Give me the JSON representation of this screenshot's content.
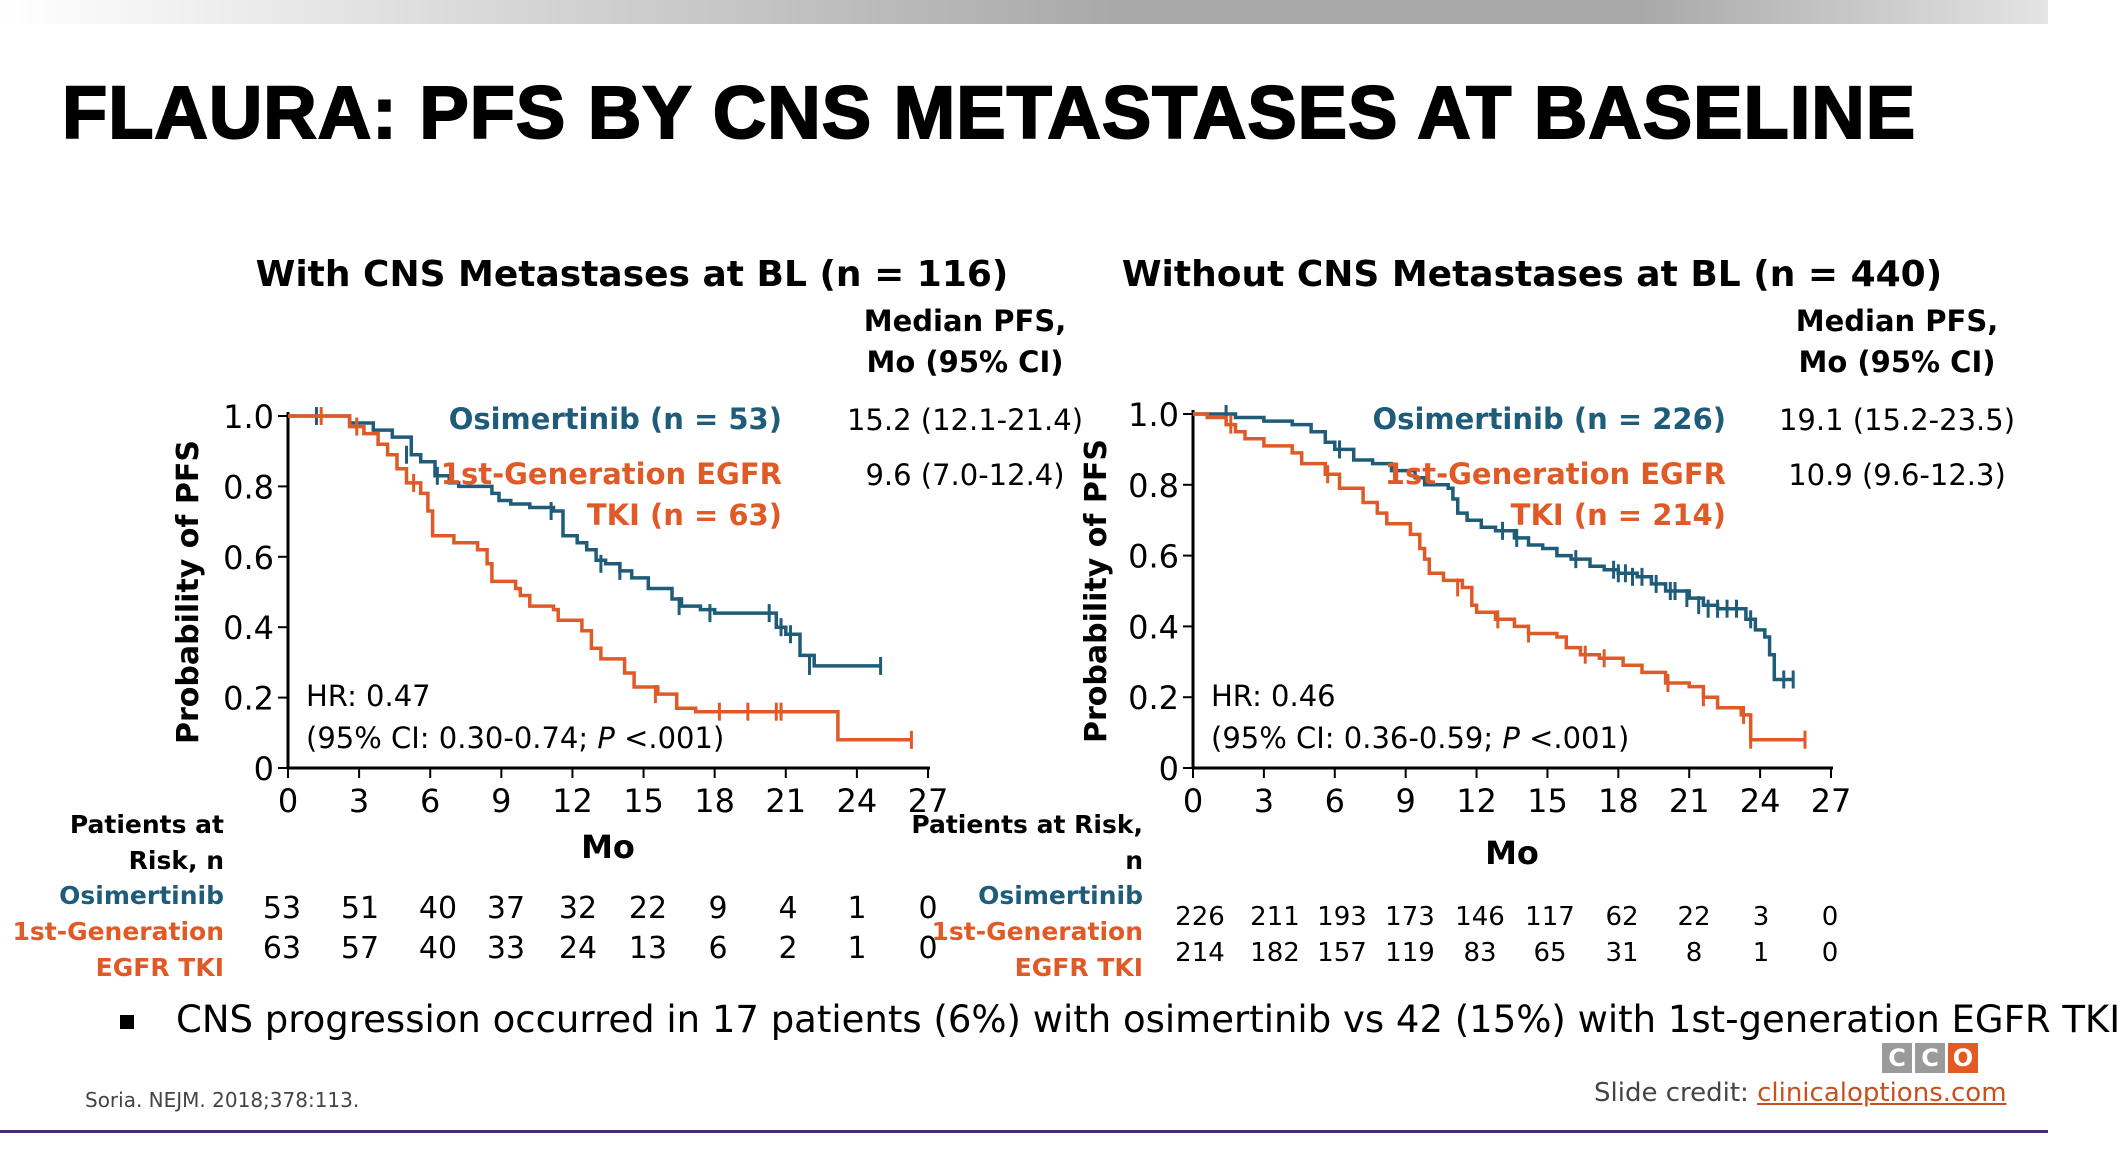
{
  "slide": {
    "title": "FLAURA: PFS BY CNS METASTASES AT BASELINE",
    "bullet": "CNS progression occurred in 17 patients (6%) with osimertinib vs 42 (15%) with 1st-generation EGFR TKI",
    "source": "Soria. NEJM. 2018;378:113.",
    "credit_label": "Slide credit:",
    "credit_link": "clinicaloptions.com",
    "logo_letters": [
      "C",
      "C",
      "O"
    ]
  },
  "colors": {
    "osimertinib": "#1f5c7a",
    "egfr_tki": "#e05a27",
    "logo_gray": "#9a9a9a",
    "bottom_line": "#4b2a6e"
  },
  "chart_data": [
    {
      "type": "line",
      "subtype": "kaplan-meier",
      "title": "With CNS Metastases at BL (n = 116)",
      "xlabel": "Mo",
      "ylabel": "Probability of PFS",
      "xlim": [
        0,
        27
      ],
      "ylim": [
        0,
        1.0
      ],
      "x_ticks": [
        0,
        3,
        6,
        9,
        12,
        15,
        18,
        21,
        24,
        27
      ],
      "y_ticks": [
        0,
        0.2,
        0.4,
        0.6,
        0.8,
        1.0
      ],
      "y_tick_labels": [
        "0",
        "0.2",
        "0.4",
        "0.6",
        "0.8",
        "1.0"
      ],
      "median_header": [
        "Median PFS,",
        "Mo (95% CI)"
      ],
      "series": [
        {
          "name": "Osimertinib (n = 53)",
          "legend_lines": [
            "Osimertinib (n = 53)"
          ],
          "median": "15.2 (12.1-21.4)",
          "color_key": "osimertinib",
          "points": [
            [
              0,
              1.0
            ],
            [
              2.2,
              1.0
            ],
            [
              2.6,
              0.98
            ],
            [
              3.6,
              0.96
            ],
            [
              4.4,
              0.94
            ],
            [
              5.2,
              0.89
            ],
            [
              5.6,
              0.87
            ],
            [
              6.2,
              0.83
            ],
            [
              6.8,
              0.81
            ],
            [
              7.2,
              0.8
            ],
            [
              8.6,
              0.78
            ],
            [
              8.9,
              0.76
            ],
            [
              9.4,
              0.75
            ],
            [
              10.2,
              0.74
            ],
            [
              11.2,
              0.73
            ],
            [
              11.6,
              0.66
            ],
            [
              12.2,
              0.64
            ],
            [
              12.6,
              0.62
            ],
            [
              13.0,
              0.59
            ],
            [
              13.4,
              0.58
            ],
            [
              14.0,
              0.56
            ],
            [
              14.5,
              0.54
            ],
            [
              15.2,
              0.51
            ],
            [
              16.2,
              0.48
            ],
            [
              16.6,
              0.46
            ],
            [
              17.4,
              0.45
            ],
            [
              18.0,
              0.44
            ],
            [
              19.0,
              0.44
            ],
            [
              20.2,
              0.44
            ],
            [
              20.6,
              0.4
            ],
            [
              21.0,
              0.38
            ],
            [
              21.6,
              0.32
            ],
            [
              22.2,
              0.29
            ],
            [
              25.0,
              0.29
            ]
          ],
          "censors": [
            [
              1.2,
              1.0
            ],
            [
              5.0,
              0.89
            ],
            [
              6.3,
              0.83
            ],
            [
              11.1,
              0.73
            ],
            [
              13.2,
              0.58
            ],
            [
              14.0,
              0.56
            ],
            [
              16.5,
              0.46
            ],
            [
              17.8,
              0.44
            ],
            [
              20.3,
              0.44
            ],
            [
              20.8,
              0.4
            ],
            [
              21.2,
              0.38
            ],
            [
              22.0,
              0.29
            ],
            [
              25.0,
              0.29
            ]
          ]
        },
        {
          "name": "1st-Generation EGFR TKI (n = 63)",
          "legend_lines": [
            "1st-Generation EGFR",
            "TKI (n = 63)"
          ],
          "median": "9.6 (7.0-12.4)",
          "color_key": "egfr_tki",
          "points": [
            [
              0,
              1.0
            ],
            [
              1.8,
              1.0
            ],
            [
              2.6,
              0.97
            ],
            [
              3.2,
              0.95
            ],
            [
              3.8,
              0.92
            ],
            [
              4.2,
              0.89
            ],
            [
              4.6,
              0.85
            ],
            [
              5.0,
              0.81
            ],
            [
              5.6,
              0.78
            ],
            [
              5.9,
              0.73
            ],
            [
              6.1,
              0.66
            ],
            [
              7.0,
              0.64
            ],
            [
              8.0,
              0.62
            ],
            [
              8.4,
              0.58
            ],
            [
              8.6,
              0.53
            ],
            [
              9.6,
              0.51
            ],
            [
              9.8,
              0.49
            ],
            [
              10.2,
              0.46
            ],
            [
              11.2,
              0.45
            ],
            [
              11.4,
              0.42
            ],
            [
              12.4,
              0.39
            ],
            [
              12.8,
              0.34
            ],
            [
              13.2,
              0.31
            ],
            [
              14.2,
              0.27
            ],
            [
              14.6,
              0.23
            ],
            [
              15.6,
              0.21
            ],
            [
              16.4,
              0.17
            ],
            [
              17.2,
              0.16
            ],
            [
              18.4,
              0.16
            ],
            [
              19.2,
              0.16
            ],
            [
              20.4,
              0.16
            ],
            [
              22.8,
              0.16
            ],
            [
              23.2,
              0.08
            ],
            [
              26.3,
              0.08
            ]
          ],
          "censors": [
            [
              1.4,
              1.0
            ],
            [
              2.9,
              0.97
            ],
            [
              5.3,
              0.81
            ],
            [
              15.5,
              0.21
            ],
            [
              18.2,
              0.16
            ],
            [
              19.4,
              0.16
            ],
            [
              20.6,
              0.16
            ],
            [
              20.8,
              0.16
            ],
            [
              26.3,
              0.08
            ]
          ]
        }
      ],
      "annotation": {
        "hr": "HR: 0.47",
        "ci_prefix": "(95% CI: 0.30-0.74; ",
        "p_italic": "P",
        "ci_suffix": " <.001)"
      },
      "risk_table": {
        "header_lines": [
          "Patients at",
          "Risk, n"
        ],
        "rows": [
          {
            "label_lines": [
              "Osimertinib"
            ],
            "color_key": "osimertinib",
            "values": [
              "53",
              "51",
              "40",
              "37",
              "32",
              "22",
              "9",
              "4",
              "1",
              "0"
            ]
          },
          {
            "label_lines": [
              "1st-Generation",
              "EGFR TKI"
            ],
            "color_key": "egfr_tki",
            "values": [
              "63",
              "57",
              "40",
              "33",
              "24",
              "13",
              "6",
              "2",
              "1",
              "0"
            ]
          }
        ]
      }
    },
    {
      "type": "line",
      "subtype": "kaplan-meier",
      "title": "Without CNS Metastases at BL (n = 440)",
      "xlabel": "Mo",
      "ylabel": "Probability of PFS",
      "xlim": [
        0,
        27
      ],
      "ylim": [
        0,
        1.0
      ],
      "x_ticks": [
        0,
        3,
        6,
        9,
        12,
        15,
        18,
        21,
        24,
        27
      ],
      "y_ticks": [
        0,
        0.2,
        0.4,
        0.6,
        0.8,
        1.0
      ],
      "y_tick_labels": [
        "0",
        "0.2",
        "0.4",
        "0.6",
        "0.8",
        "1.0"
      ],
      "median_header": [
        "Median PFS,",
        "Mo (95% CI)"
      ],
      "series": [
        {
          "name": "Osimertinib (n = 226)",
          "legend_lines": [
            "Osimertinib (n = 226)"
          ],
          "median": "19.1 (15.2-23.5)",
          "color_key": "osimertinib",
          "points": [
            [
              0,
              1.0
            ],
            [
              1.4,
              1.0
            ],
            [
              1.8,
              0.99
            ],
            [
              3.0,
              0.98
            ],
            [
              4.2,
              0.97
            ],
            [
              5.0,
              0.95
            ],
            [
              5.6,
              0.92
            ],
            [
              6.0,
              0.9
            ],
            [
              6.8,
              0.87
            ],
            [
              7.6,
              0.86
            ],
            [
              8.4,
              0.84
            ],
            [
              9.4,
              0.82
            ],
            [
              9.8,
              0.8
            ],
            [
              10.8,
              0.79
            ],
            [
              11.0,
              0.76
            ],
            [
              11.2,
              0.72
            ],
            [
              11.6,
              0.7
            ],
            [
              12.2,
              0.68
            ],
            [
              12.8,
              0.67
            ],
            [
              13.6,
              0.65
            ],
            [
              14.2,
              0.63
            ],
            [
              14.8,
              0.62
            ],
            [
              15.4,
              0.6
            ],
            [
              16.0,
              0.59
            ],
            [
              16.8,
              0.57
            ],
            [
              17.4,
              0.56
            ],
            [
              18.0,
              0.55
            ],
            [
              18.8,
              0.54
            ],
            [
              19.4,
              0.52
            ],
            [
              20.0,
              0.5
            ],
            [
              21.0,
              0.48
            ],
            [
              21.6,
              0.46
            ],
            [
              22.2,
              0.45
            ],
            [
              23.0,
              0.45
            ],
            [
              23.4,
              0.42
            ],
            [
              23.8,
              0.39
            ],
            [
              24.2,
              0.37
            ],
            [
              24.4,
              0.32
            ],
            [
              24.6,
              0.25
            ],
            [
              25.4,
              0.25
            ]
          ],
          "censors": [
            [
              1.4,
              1.0
            ],
            [
              6.2,
              0.9
            ],
            [
              13.1,
              0.67
            ],
            [
              13.7,
              0.65
            ],
            [
              16.2,
              0.59
            ],
            [
              17.8,
              0.56
            ],
            [
              18.0,
              0.55
            ],
            [
              18.3,
              0.55
            ],
            [
              18.6,
              0.54
            ],
            [
              19.0,
              0.54
            ],
            [
              19.6,
              0.52
            ],
            [
              20.2,
              0.5
            ],
            [
              20.4,
              0.5
            ],
            [
              20.9,
              0.48
            ],
            [
              21.4,
              0.46
            ],
            [
              21.8,
              0.45
            ],
            [
              22.2,
              0.45
            ],
            [
              22.6,
              0.45
            ],
            [
              23.0,
              0.45
            ],
            [
              23.6,
              0.42
            ],
            [
              25.0,
              0.25
            ],
            [
              25.4,
              0.25
            ]
          ]
        },
        {
          "name": "1st-Generation EGFR TKI (n = 214)",
          "legend_lines": [
            "1st-Generation EGFR",
            "TKI (n = 214)"
          ],
          "median": "10.9 (9.6-12.3)",
          "color_key": "egfr_tki",
          "points": [
            [
              0,
              1.0
            ],
            [
              0.6,
              0.99
            ],
            [
              1.4,
              0.97
            ],
            [
              1.8,
              0.95
            ],
            [
              2.2,
              0.93
            ],
            [
              3.0,
              0.91
            ],
            [
              4.2,
              0.89
            ],
            [
              4.6,
              0.86
            ],
            [
              5.6,
              0.83
            ],
            [
              6.2,
              0.79
            ],
            [
              7.2,
              0.75
            ],
            [
              7.8,
              0.72
            ],
            [
              8.2,
              0.69
            ],
            [
              9.2,
              0.66
            ],
            [
              9.6,
              0.62
            ],
            [
              9.8,
              0.59
            ],
            [
              10.0,
              0.55
            ],
            [
              10.6,
              0.53
            ],
            [
              11.4,
              0.51
            ],
            [
              11.8,
              0.46
            ],
            [
              12.0,
              0.44
            ],
            [
              12.8,
              0.42
            ],
            [
              13.6,
              0.4
            ],
            [
              14.2,
              0.38
            ],
            [
              15.4,
              0.37
            ],
            [
              15.8,
              0.34
            ],
            [
              16.4,
              0.32
            ],
            [
              17.2,
              0.31
            ],
            [
              18.2,
              0.29
            ],
            [
              19.0,
              0.27
            ],
            [
              20.0,
              0.24
            ],
            [
              21.0,
              0.23
            ],
            [
              21.6,
              0.2
            ],
            [
              22.2,
              0.17
            ],
            [
              23.2,
              0.15
            ],
            [
              23.6,
              0.08
            ],
            [
              25.9,
              0.08
            ]
          ],
          "censors": [
            [
              1.6,
              0.97
            ],
            [
              5.7,
              0.83
            ],
            [
              11.2,
              0.51
            ],
            [
              12.9,
              0.42
            ],
            [
              14.2,
              0.38
            ],
            [
              16.6,
              0.32
            ],
            [
              17.4,
              0.31
            ],
            [
              20.1,
              0.24
            ],
            [
              21.6,
              0.2
            ],
            [
              23.3,
              0.15
            ],
            [
              23.6,
              0.08
            ],
            [
              25.9,
              0.08
            ]
          ]
        }
      ],
      "annotation": {
        "hr": "HR: 0.46",
        "ci_prefix": "(95% CI: 0.36-0.59; ",
        "p_italic": "P",
        "ci_suffix": " <.001)"
      },
      "risk_table": {
        "header_lines": [
          "Patients at Risk,",
          "n"
        ],
        "rows": [
          {
            "label_lines": [
              "Osimertinib"
            ],
            "color_key": "osimertinib",
            "values": [
              "226",
              "211",
              "193",
              "173",
              "146",
              "117",
              "62",
              "22",
              "3",
              "0"
            ]
          },
          {
            "label_lines": [
              "1st-Generation",
              "EGFR TKI"
            ],
            "color_key": "egfr_tki",
            "values": [
              "214",
              "182",
              "157",
              "119",
              "83",
              "65",
              "31",
              "8",
              "1",
              "0"
            ]
          }
        ]
      }
    }
  ]
}
